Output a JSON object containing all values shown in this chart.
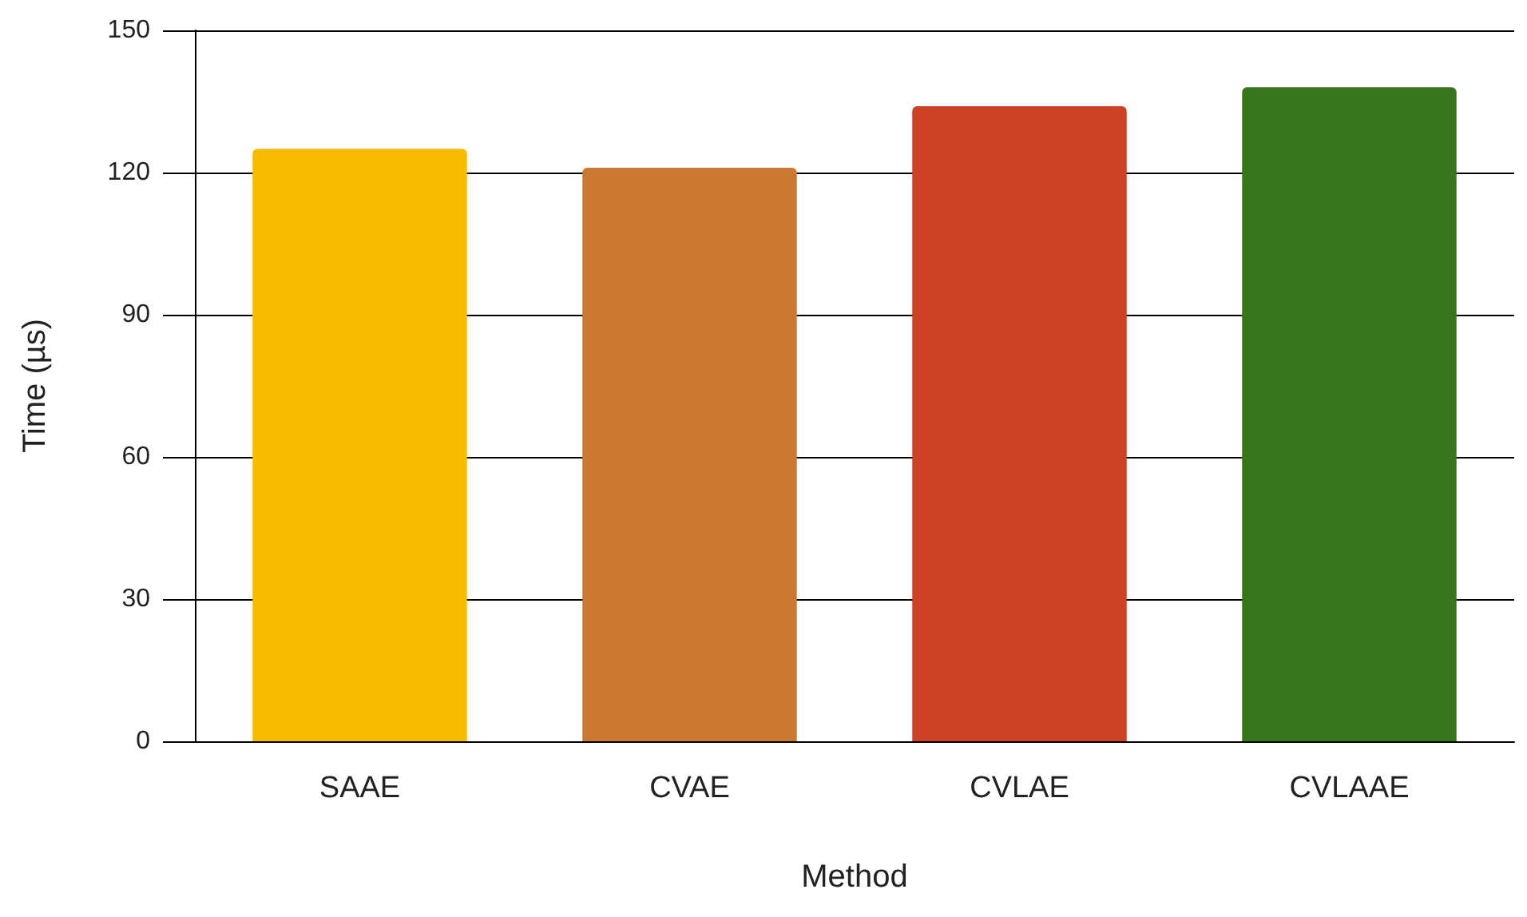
{
  "chart_data": {
    "type": "bar",
    "xlabel": "Method",
    "ylabel": "Time (µs)",
    "categories": [
      "SAAE",
      "CVAE",
      "CVLAE",
      "CVLAAE"
    ],
    "values": [
      125,
      121,
      134,
      138
    ],
    "colors": [
      "#f9bb00",
      "#cd7832",
      "#cc4125",
      "#38761d"
    ],
    "ylim": [
      0,
      150
    ],
    "yticks": [
      0,
      30,
      60,
      90,
      120,
      150
    ],
    "grid": "y"
  }
}
